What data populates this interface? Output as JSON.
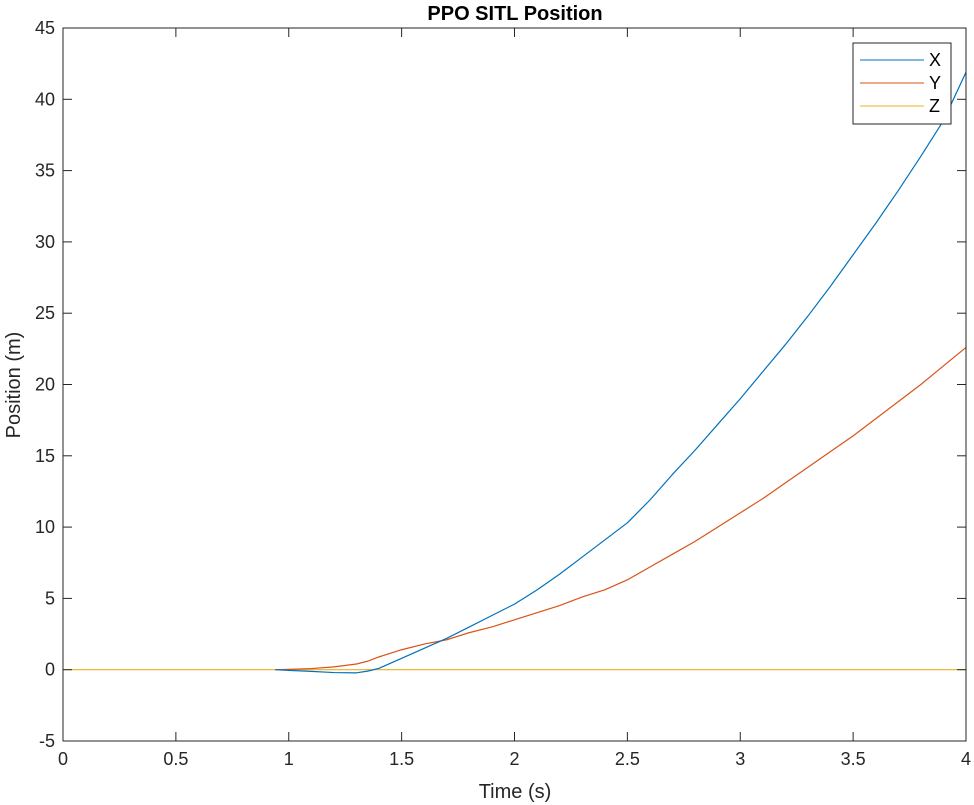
{
  "chart_data": {
    "type": "line",
    "title": "PPO SITL Position",
    "xlabel": "Time (s)",
    "ylabel": "Position (m)",
    "xlim": [
      0,
      4
    ],
    "ylim": [
      -5,
      45
    ],
    "xticks": [
      0,
      0.5,
      1,
      1.5,
      2,
      2.5,
      3,
      3.5,
      4
    ],
    "xtick_labels": [
      "0",
      "0.5",
      "1",
      "1.5",
      "2",
      "2.5",
      "3",
      "3.5",
      "4"
    ],
    "yticks": [
      -5,
      0,
      5,
      10,
      15,
      20,
      25,
      30,
      35,
      40,
      45
    ],
    "ytick_labels": [
      "-5",
      "0",
      "5",
      "10",
      "15",
      "20",
      "25",
      "30",
      "35",
      "40",
      "45"
    ],
    "grid": false,
    "legend_position": "top-right",
    "series": [
      {
        "name": "X",
        "color": "#0072BD",
        "x": [
          0.94,
          1.0,
          1.1,
          1.2,
          1.3,
          1.35,
          1.4,
          1.5,
          1.6,
          1.7,
          1.8,
          1.9,
          2.0,
          2.1,
          2.2,
          2.3,
          2.4,
          2.5,
          2.6,
          2.7,
          2.8,
          2.9,
          3.0,
          3.1,
          3.2,
          3.3,
          3.4,
          3.5,
          3.6,
          3.7,
          3.8,
          3.9,
          4.0
        ],
        "y": [
          0,
          -0.05,
          -0.12,
          -0.2,
          -0.22,
          -0.1,
          0.1,
          0.8,
          1.5,
          2.2,
          3.0,
          3.8,
          4.6,
          5.6,
          6.7,
          7.9,
          9.1,
          10.3,
          11.9,
          13.7,
          15.4,
          17.2,
          19.0,
          20.9,
          22.8,
          24.8,
          26.9,
          29.1,
          31.3,
          33.6,
          36.0,
          38.5,
          41.9
        ]
      },
      {
        "name": "Y",
        "color": "#D95319",
        "x": [
          0.94,
          1.0,
          1.1,
          1.2,
          1.3,
          1.35,
          1.4,
          1.5,
          1.6,
          1.7,
          1.8,
          1.9,
          2.0,
          2.1,
          2.2,
          2.3,
          2.4,
          2.5,
          2.6,
          2.7,
          2.8,
          2.9,
          3.0,
          3.1,
          3.2,
          3.3,
          3.4,
          3.5,
          3.6,
          3.7,
          3.8,
          3.9,
          4.0
        ],
        "y": [
          0,
          0.02,
          0.08,
          0.2,
          0.4,
          0.6,
          0.9,
          1.4,
          1.8,
          2.1,
          2.6,
          3.0,
          3.5,
          4.0,
          4.5,
          5.1,
          5.6,
          6.3,
          7.2,
          8.1,
          9.0,
          10.0,
          11.0,
          12.0,
          13.1,
          14.2,
          15.3,
          16.4,
          17.6,
          18.8,
          20.0,
          21.3,
          22.6
        ]
      },
      {
        "name": "Z",
        "color": "#EDB120",
        "x": [
          0,
          4
        ],
        "y": [
          0,
          0
        ]
      }
    ]
  }
}
